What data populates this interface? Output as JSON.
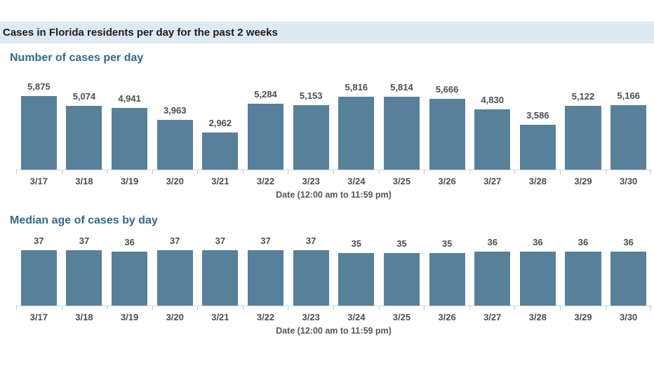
{
  "page": {
    "title": "Cases in Florida residents per day for the past 2 weeks"
  },
  "colors": {
    "bar": "#57809b",
    "title_band_bg": "#dfe9f2",
    "section_title": "#2f6b8c",
    "label_text": "#4e4e4e",
    "axis_line": "#d6d6d6"
  },
  "chart_data": [
    {
      "type": "bar",
      "title": "Number of cases per day",
      "categories": [
        "3/17",
        "3/18",
        "3/19",
        "3/20",
        "3/21",
        "3/22",
        "3/23",
        "3/24",
        "3/25",
        "3/26",
        "3/27",
        "3/28",
        "3/29",
        "3/30"
      ],
      "values": [
        5875,
        5074,
        4941,
        3963,
        2962,
        5284,
        5153,
        5816,
        5814,
        5666,
        4830,
        3586,
        5122,
        5166
      ],
      "labels": [
        "5,875",
        "5,074",
        "4,941",
        "3,963",
        "2,962",
        "5,284",
        "5,153",
        "5,816",
        "5,814",
        "5,666",
        "4,830",
        "3,586",
        "5,122",
        "5,166"
      ],
      "xlabel": "Date (12:00 am to 11:59 pm)",
      "ylabel": "",
      "ylim": [
        0,
        5875
      ],
      "grid": false,
      "legend": "none",
      "value_labels": "above bars"
    },
    {
      "type": "bar",
      "title": "Median age of cases by day",
      "categories": [
        "3/17",
        "3/18",
        "3/19",
        "3/20",
        "3/21",
        "3/22",
        "3/23",
        "3/24",
        "3/25",
        "3/26",
        "3/27",
        "3/28",
        "3/29",
        "3/30"
      ],
      "values": [
        37,
        37,
        36,
        37,
        37,
        37,
        37,
        35,
        35,
        35,
        36,
        36,
        36,
        36
      ],
      "labels": [
        "37",
        "37",
        "36",
        "37",
        "37",
        "37",
        "37",
        "35",
        "35",
        "35",
        "36",
        "36",
        "36",
        "36"
      ],
      "xlabel": "Date (12:00 am to 11:59 pm)",
      "ylabel": "",
      "ylim": [
        0,
        37
      ],
      "grid": false,
      "legend": "none",
      "value_labels": "above bars"
    }
  ]
}
